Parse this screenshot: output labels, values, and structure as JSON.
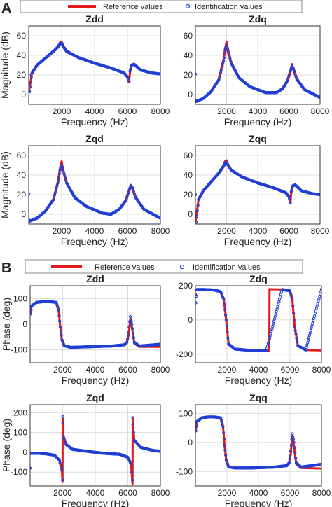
{
  "figure": {
    "panels": [
      {
        "label": "A"
      },
      {
        "label": "B"
      }
    ],
    "legend": {
      "reference": "Reference values",
      "identification": "Identification values"
    },
    "colors": {
      "reference": "#e41a1c",
      "identification": "#1f3fd6",
      "grid": "#dcdcdc",
      "axis": "#333333"
    }
  },
  "chart_data": [
    {
      "type": "line",
      "title": "Zdd",
      "xlabel": "Frequency (Hz)",
      "ylabel": "Magnitude (dB)",
      "xlim": [
        0,
        8000
      ],
      "ylim": [
        -10,
        70
      ],
      "xticks": [
        2000,
        4000,
        6000,
        8000
      ],
      "yticks": [
        0,
        20,
        40,
        60
      ],
      "grid": true,
      "series": [
        {
          "name": "Reference values",
          "x": [
            0,
            200,
            500,
            1000,
            1500,
            1800,
            1900,
            2000,
            2100,
            2300,
            3000,
            4000,
            5000,
            5800,
            6000,
            6100,
            6150,
            6250,
            6400,
            6800,
            7500,
            8000
          ],
          "y": [
            2,
            22,
            30,
            37,
            44,
            50,
            53,
            54,
            50,
            45,
            38,
            32,
            27,
            22,
            18,
            13,
            22,
            30,
            30,
            25,
            22,
            21
          ]
        },
        {
          "name": "Identification values",
          "x": [
            0,
            30,
            50,
            200,
            500,
            1000,
            1500,
            1800,
            1900,
            2000,
            2100,
            2300,
            3000,
            4000,
            5000,
            5800,
            6000,
            6100,
            6150,
            6250,
            6400,
            6800,
            7500,
            8000
          ],
          "y": [
            3,
            20,
            3,
            22,
            30,
            37,
            44,
            49,
            52,
            52,
            49,
            44,
            38,
            32,
            27,
            22,
            18,
            13,
            24,
            30,
            31,
            25,
            22,
            21
          ]
        }
      ]
    },
    {
      "type": "line",
      "title": "Zdq",
      "xlabel": "Frequency (Hz)",
      "ylabel": "",
      "xlim": [
        0,
        8000
      ],
      "ylim": [
        -10,
        70
      ],
      "xticks": [
        2000,
        4000,
        6000,
        8000
      ],
      "yticks": [
        0,
        20,
        40,
        60
      ],
      "grid": true,
      "series": [
        {
          "name": "Reference values",
          "x": [
            0,
            200,
            500,
            1000,
            1500,
            1800,
            1900,
            2000,
            2100,
            2300,
            2800,
            3500,
            4500,
            5200,
            5600,
            5900,
            6100,
            6200,
            6300,
            6500,
            7000,
            8000
          ],
          "y": [
            -7,
            -6,
            -4,
            3,
            15,
            35,
            47,
            54,
            45,
            32,
            17,
            8,
            2,
            2,
            6,
            14,
            25,
            31,
            25,
            16,
            5,
            -3
          ]
        },
        {
          "name": "Identification values",
          "x": [
            0,
            30,
            60,
            200,
            500,
            1000,
            1500,
            1800,
            1900,
            2000,
            2100,
            2300,
            2800,
            3500,
            4500,
            5200,
            5600,
            5900,
            6100,
            6200,
            6300,
            6500,
            7000,
            8000
          ],
          "y": [
            21,
            -6,
            -7,
            -6,
            -4,
            3,
            15,
            34,
            45,
            50,
            44,
            32,
            17,
            8,
            2,
            2,
            6,
            14,
            24,
            29,
            26,
            16,
            5,
            -3
          ]
        }
      ]
    },
    {
      "type": "line",
      "title": "Zqd",
      "xlabel": "Frequency (Hz)",
      "ylabel": "Magnitude (dB)",
      "xlim": [
        0,
        8000
      ],
      "ylim": [
        -10,
        70
      ],
      "xticks": [
        2000,
        4000,
        6000,
        8000
      ],
      "yticks": [
        0,
        20,
        40,
        60
      ],
      "grid": true,
      "series": [
        {
          "name": "Reference values",
          "x": [
            0,
            200,
            500,
            1000,
            1500,
            1800,
            1900,
            2000,
            2100,
            2300,
            2800,
            3500,
            4500,
            5000,
            5500,
            5900,
            6100,
            6200,
            6300,
            6500,
            7000,
            8000
          ],
          "y": [
            -7,
            -6,
            -4,
            3,
            15,
            35,
            47,
            54,
            45,
            32,
            17,
            8,
            1,
            0,
            5,
            14,
            25,
            30,
            26,
            17,
            5,
            -4
          ]
        },
        {
          "name": "Identification values",
          "x": [
            0,
            30,
            60,
            200,
            500,
            1000,
            1500,
            1800,
            1900,
            2000,
            2100,
            2300,
            2800,
            3500,
            4500,
            5000,
            5500,
            5900,
            6100,
            6200,
            6300,
            6500,
            7000,
            8000
          ],
          "y": [
            21,
            -6,
            -7,
            -6,
            -4,
            3,
            15,
            34,
            45,
            50,
            44,
            32,
            17,
            8,
            1,
            0,
            5,
            14,
            24,
            29,
            27,
            17,
            5,
            -4
          ]
        }
      ]
    },
    {
      "type": "line",
      "title": "Zqq",
      "xlabel": "Frequency (Hz)",
      "ylabel": "",
      "xlim": [
        0,
        8000
      ],
      "ylim": [
        -10,
        70
      ],
      "xticks": [
        2000,
        4000,
        6000,
        8000
      ],
      "yticks": [
        0,
        20,
        40,
        60
      ],
      "grid": true,
      "series": [
        {
          "name": "Reference values",
          "x": [
            0,
            200,
            500,
            1000,
            1500,
            1800,
            1900,
            2000,
            2100,
            2300,
            3000,
            4000,
            5000,
            5800,
            6000,
            6100,
            6150,
            6250,
            6400,
            6800,
            7500,
            8000
          ],
          "y": [
            -8,
            15,
            24,
            33,
            42,
            50,
            54,
            55,
            50,
            45,
            38,
            32,
            27,
            22,
            18,
            12,
            22,
            29,
            30,
            24,
            21,
            20
          ]
        },
        {
          "name": "Identification values",
          "x": [
            0,
            30,
            60,
            200,
            500,
            1000,
            1500,
            1800,
            1900,
            2000,
            2100,
            2300,
            3000,
            4000,
            5000,
            5800,
            6000,
            6100,
            6150,
            6250,
            6400,
            6800,
            7500,
            8000
          ],
          "y": [
            20,
            -8,
            -8,
            15,
            24,
            33,
            42,
            49,
            52,
            53,
            50,
            45,
            38,
            32,
            27,
            22,
            18,
            12,
            23,
            29,
            30,
            24,
            21,
            20
          ]
        }
      ]
    },
    {
      "type": "line",
      "title": "Zdd",
      "xlabel": "Frequency (Hz)",
      "ylabel": "Phase (deg)",
      "xlim": [
        0,
        8000
      ],
      "ylim": [
        -150,
        150
      ],
      "xticks": [
        2000,
        4000,
        6000,
        8000
      ],
      "yticks": [
        -100,
        0,
        100
      ],
      "grid": true,
      "series": [
        {
          "name": "Reference values",
          "x": [
            0,
            100,
            400,
            800,
            1200,
            1600,
            1750,
            1850,
            1950,
            2100,
            2500,
            3500,
            5000,
            5800,
            5950,
            6050,
            6150,
            6250,
            6400,
            6700,
            8000
          ],
          "y": [
            40,
            72,
            85,
            88,
            88,
            85,
            55,
            -10,
            -60,
            -84,
            -90,
            -88,
            -85,
            -80,
            -70,
            -40,
            20,
            -10,
            -75,
            -88,
            -88
          ]
        },
        {
          "name": "Identification values",
          "x": [
            0,
            30,
            100,
            400,
            800,
            1200,
            1600,
            1750,
            1850,
            1950,
            2100,
            2500,
            3500,
            5000,
            5800,
            5950,
            6050,
            6150,
            6250,
            6400,
            6700,
            8000
          ],
          "y": [
            65,
            40,
            72,
            85,
            88,
            88,
            85,
            55,
            -10,
            -60,
            -84,
            -90,
            -88,
            -85,
            -80,
            -70,
            -30,
            30,
            0,
            -70,
            -85,
            -78
          ]
        }
      ]
    },
    {
      "type": "line",
      "title": "Zdq",
      "xlabel": "Frequency (Hz)",
      "ylabel": "",
      "xlim": [
        0,
        8000
      ],
      "ylim": [
        -250,
        200
      ],
      "xticks": [
        2000,
        4000,
        6000,
        8000
      ],
      "yticks": [
        -200,
        0,
        200
      ],
      "grid": true,
      "series": [
        {
          "name": "Reference values",
          "x": [
            0,
            500,
            1200,
            1600,
            1800,
            1950,
            2100,
            2500,
            3500,
            4500,
            4690,
            4700,
            5500,
            6000,
            6150,
            6300,
            6500,
            7000,
            8000
          ],
          "y": [
            178,
            178,
            175,
            165,
            120,
            0,
            -140,
            -170,
            -178,
            -180,
            -180,
            180,
            178,
            170,
            120,
            -40,
            -150,
            -175,
            -178
          ]
        },
        {
          "name": "Identification values",
          "x": [
            0,
            30,
            100,
            500,
            1200,
            1600,
            1800,
            1950,
            2100,
            2500,
            3500,
            4500,
            5500,
            6000,
            6150,
            6300,
            6500,
            7000,
            8000
          ],
          "y": [
            150,
            100,
            178,
            178,
            175,
            165,
            120,
            0,
            -140,
            -170,
            -178,
            -180,
            178,
            170,
            120,
            -40,
            -150,
            -175,
            180
          ]
        }
      ]
    },
    {
      "type": "line",
      "title": "Zqd",
      "xlabel": "Frequency (Hz)",
      "ylabel": "Phase (deg)",
      "xlim": [
        0,
        8000
      ],
      "ylim": [
        -170,
        240
      ],
      "xticks": [
        2000,
        4000,
        6000,
        8000
      ],
      "yticks": [
        -100,
        0,
        100,
        200
      ],
      "grid": true,
      "series": [
        {
          "name": "Reference values",
          "x": [
            0,
            500,
            1000,
            1500,
            1800,
            1950,
            1990,
            2000,
            2010,
            2050,
            2200,
            2600,
            3500,
            4500,
            5500,
            6000,
            6200,
            6280,
            6290,
            6300,
            6310,
            6400,
            6800,
            7500,
            8000
          ],
          "y": [
            -5,
            -5,
            -8,
            -15,
            -40,
            -90,
            -150,
            170,
            150,
            80,
            40,
            15,
            5,
            -5,
            -10,
            -25,
            -60,
            -150,
            -160,
            170,
            140,
            60,
            25,
            10,
            5
          ]
        },
        {
          "name": "Identification values",
          "x": [
            0,
            30,
            60,
            500,
            1000,
            1500,
            1800,
            1950,
            1990,
            2000,
            2010,
            2050,
            2200,
            2600,
            3500,
            4500,
            5500,
            6000,
            6200,
            6280,
            6300,
            6310,
            6400,
            6800,
            7500,
            8000
          ],
          "y": [
            -80,
            -5,
            -5,
            -5,
            -8,
            -15,
            -40,
            -90,
            -140,
            180,
            150,
            80,
            40,
            15,
            5,
            -5,
            -10,
            -25,
            -60,
            -140,
            175,
            140,
            60,
            25,
            10,
            5
          ]
        }
      ]
    },
    {
      "type": "line",
      "title": "Zqq",
      "xlabel": "Frequency (Hz)",
      "ylabel": "",
      "xlim": [
        0,
        8000
      ],
      "ylim": [
        -150,
        130
      ],
      "xticks": [
        2000,
        4000,
        6000,
        8000
      ],
      "yticks": [
        -100,
        0,
        100
      ],
      "grid": true,
      "series": [
        {
          "name": "Reference values",
          "x": [
            0,
            100,
            400,
            800,
            1200,
            1600,
            1750,
            1850,
            1950,
            2100,
            2500,
            3500,
            5000,
            5800,
            5950,
            6050,
            6150,
            6250,
            6400,
            6700,
            8000
          ],
          "y": [
            40,
            72,
            85,
            88,
            88,
            85,
            55,
            -10,
            -60,
            -84,
            -88,
            -88,
            -85,
            -80,
            -70,
            -40,
            25,
            -10,
            -75,
            -88,
            -90
          ]
        },
        {
          "name": "Identification values",
          "x": [
            0,
            30,
            100,
            400,
            800,
            1200,
            1600,
            1750,
            1850,
            1950,
            2100,
            2500,
            3500,
            5000,
            5800,
            5950,
            6050,
            6150,
            6250,
            6400,
            6700,
            8000
          ],
          "y": [
            70,
            40,
            72,
            85,
            88,
            88,
            85,
            55,
            -10,
            -60,
            -84,
            -88,
            -88,
            -85,
            -80,
            -70,
            -30,
            30,
            0,
            -70,
            -85,
            -75
          ]
        }
      ]
    }
  ]
}
